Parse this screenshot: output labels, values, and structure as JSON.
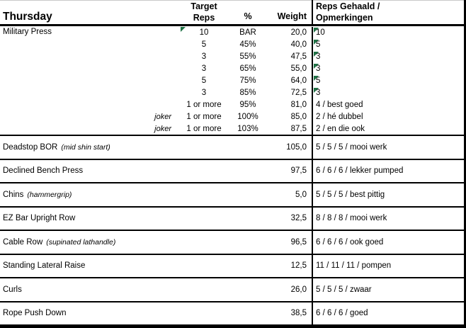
{
  "colors": {
    "marker_green": "#1F7245"
  },
  "header": {
    "day": "Thursday",
    "target_line1": "Target",
    "target_line2": "Reps",
    "percent": "%",
    "weight": "Weight",
    "result_line1": "Reps Gehaald /",
    "result_line2": "Opmerkingen"
  },
  "military_press": {
    "name": "Military Press",
    "sets": [
      {
        "joker": "",
        "target": "10",
        "pct": "BAR",
        "weight": "20,0",
        "result": "10"
      },
      {
        "joker": "",
        "target": "5",
        "pct": "45%",
        "weight": "40,0",
        "result": "5"
      },
      {
        "joker": "",
        "target": "3",
        "pct": "55%",
        "weight": "47,5",
        "result": "3"
      },
      {
        "joker": "",
        "target": "3",
        "pct": "65%",
        "weight": "55,0",
        "result": "3"
      },
      {
        "joker": "",
        "target": "5",
        "pct": "75%",
        "weight": "64,0",
        "result": "5"
      },
      {
        "joker": "",
        "target": "3",
        "pct": "85%",
        "weight": "72,5",
        "result": "3"
      },
      {
        "joker": "",
        "target": "1 or more",
        "pct": "95%",
        "weight": "81,0",
        "result": "4 / best goed"
      },
      {
        "joker": "joker",
        "target": "1 or more",
        "pct": "100%",
        "weight": "85,0",
        "result": "2 / hé dubbel"
      },
      {
        "joker": "joker",
        "target": "1 or more",
        "pct": "103%",
        "weight": "87,5",
        "result": "2 / en die ook"
      }
    ]
  },
  "exercises": [
    {
      "name": "Deadstop BOR",
      "note": "(mid shin start)",
      "weight": "105,0",
      "result": "5 / 5 / 5 / mooi werk"
    },
    {
      "name": "Declined Bench Press",
      "note": "",
      "weight": "97,5",
      "result": "6 / 6 / 6 / lekker pumped"
    },
    {
      "name": "Chins",
      "note": "(hammergrip)",
      "weight": "5,0",
      "result": "5 / 5 / 5 / best pittig"
    },
    {
      "name": "EZ Bar Upright Row",
      "note": "",
      "weight": "32,5",
      "result": "8 / 8 / 8 / mooi werk"
    },
    {
      "name": "Cable Row",
      "note": "(supinated lathandle)",
      "weight": "96,5",
      "result": "6 / 6 / 6 / ook goed"
    },
    {
      "name": "Standing Lateral Raise",
      "note": "",
      "weight": "12,5",
      "result": "11 / 11 / 11 / pompen"
    },
    {
      "name": "Curls",
      "note": "",
      "weight": "26,0",
      "result": "5 / 5 / 5 / zwaar"
    },
    {
      "name": "Rope Push Down",
      "note": "",
      "weight": "38,5",
      "result": "6 / 6 / 6 / goed"
    }
  ]
}
